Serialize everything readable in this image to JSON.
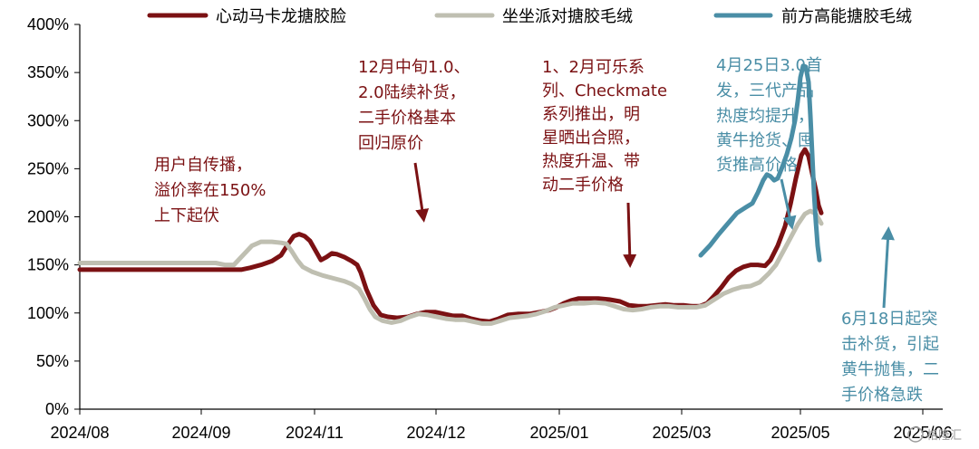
{
  "chart_data": {
    "type": "line",
    "x_labels": [
      "2024/08",
      "2024/09",
      "2024/11",
      "2024/12",
      "2025/01",
      "2025/03",
      "2025/05",
      "2025/06"
    ],
    "y_ticks": [
      "0%",
      "50%",
      "100%",
      "150%",
      "200%",
      "250%",
      "300%",
      "350%",
      "400%"
    ],
    "ylim": [
      0,
      400
    ],
    "y_unit": "%",
    "grid": false,
    "legend_position": "top",
    "series": [
      {
        "name": "心动马卡龙搪胶脸",
        "color": "#7b1113",
        "points": [
          [
            0,
            145
          ],
          [
            20,
            145
          ],
          [
            50,
            145
          ],
          [
            80,
            145
          ],
          [
            110,
            145
          ],
          [
            140,
            145
          ],
          [
            160,
            145
          ],
          [
            178,
            145
          ],
          [
            188,
            147
          ],
          [
            200,
            150
          ],
          [
            212,
            154
          ],
          [
            222,
            160
          ],
          [
            230,
            172
          ],
          [
            236,
            180
          ],
          [
            242,
            182
          ],
          [
            248,
            180
          ],
          [
            254,
            175
          ],
          [
            260,
            165
          ],
          [
            266,
            155
          ],
          [
            272,
            158
          ],
          [
            278,
            162
          ],
          [
            284,
            161
          ],
          [
            292,
            158
          ],
          [
            300,
            154
          ],
          [
            306,
            150
          ],
          [
            310,
            142
          ],
          [
            316,
            125
          ],
          [
            324,
            108
          ],
          [
            332,
            98
          ],
          [
            340,
            96
          ],
          [
            350,
            95
          ],
          [
            362,
            96
          ],
          [
            372,
            99
          ],
          [
            382,
            101
          ],
          [
            392,
            101
          ],
          [
            402,
            99
          ],
          [
            412,
            97
          ],
          [
            422,
            97
          ],
          [
            432,
            94
          ],
          [
            442,
            92
          ],
          [
            452,
            91
          ],
          [
            462,
            94
          ],
          [
            472,
            98
          ],
          [
            484,
            99
          ],
          [
            496,
            99
          ],
          [
            508,
            101
          ],
          [
            518,
            103
          ],
          [
            526,
            106
          ],
          [
            534,
            110
          ],
          [
            542,
            113
          ],
          [
            550,
            115
          ],
          [
            560,
            115
          ],
          [
            572,
            115
          ],
          [
            584,
            114
          ],
          [
            596,
            112
          ],
          [
            606,
            108
          ],
          [
            616,
            107
          ],
          [
            626,
            107
          ],
          [
            636,
            108
          ],
          [
            646,
            109
          ],
          [
            656,
            108
          ],
          [
            666,
            108
          ],
          [
            676,
            107
          ],
          [
            684,
            107
          ],
          [
            692,
            110
          ],
          [
            700,
            118
          ],
          [
            708,
            127
          ],
          [
            716,
            137
          ],
          [
            724,
            144
          ],
          [
            732,
            148
          ],
          [
            740,
            150
          ],
          [
            748,
            150
          ],
          [
            756,
            149
          ],
          [
            762,
            155
          ],
          [
            770,
            170
          ],
          [
            778,
            190
          ],
          [
            784,
            213
          ],
          [
            790,
            240
          ],
          [
            796,
            264
          ],
          [
            800,
            270
          ],
          [
            804,
            263
          ],
          [
            808,
            245
          ],
          [
            812,
            228
          ],
          [
            815,
            212
          ],
          [
            818,
            204
          ]
        ]
      },
      {
        "name": "坐坐派对搪胶毛绒",
        "color": "#bfbfb1",
        "points": [
          [
            0,
            152
          ],
          [
            30,
            152
          ],
          [
            60,
            152
          ],
          [
            90,
            152
          ],
          [
            120,
            152
          ],
          [
            140,
            152
          ],
          [
            150,
            152
          ],
          [
            160,
            150
          ],
          [
            170,
            150
          ],
          [
            180,
            160
          ],
          [
            190,
            170
          ],
          [
            200,
            174
          ],
          [
            212,
            174
          ],
          [
            222,
            173
          ],
          [
            228,
            172
          ],
          [
            234,
            164
          ],
          [
            240,
            155
          ],
          [
            246,
            148
          ],
          [
            256,
            143
          ],
          [
            268,
            139
          ],
          [
            280,
            136
          ],
          [
            292,
            133
          ],
          [
            300,
            130
          ],
          [
            308,
            125
          ],
          [
            314,
            115
          ],
          [
            320,
            104
          ],
          [
            326,
            96
          ],
          [
            334,
            92
          ],
          [
            344,
            90
          ],
          [
            354,
            92
          ],
          [
            364,
            96
          ],
          [
            374,
            99
          ],
          [
            384,
            98
          ],
          [
            394,
            96
          ],
          [
            404,
            94
          ],
          [
            414,
            93
          ],
          [
            424,
            93
          ],
          [
            434,
            91
          ],
          [
            444,
            89
          ],
          [
            454,
            89
          ],
          [
            464,
            92
          ],
          [
            474,
            95
          ],
          [
            484,
            96
          ],
          [
            494,
            97
          ],
          [
            504,
            99
          ],
          [
            514,
            102
          ],
          [
            524,
            106
          ],
          [
            534,
            108
          ],
          [
            544,
            110
          ],
          [
            556,
            110
          ],
          [
            568,
            111
          ],
          [
            580,
            110
          ],
          [
            590,
            107
          ],
          [
            600,
            104
          ],
          [
            610,
            103
          ],
          [
            620,
            104
          ],
          [
            630,
            106
          ],
          [
            640,
            107
          ],
          [
            650,
            107
          ],
          [
            660,
            106
          ],
          [
            670,
            106
          ],
          [
            680,
            106
          ],
          [
            690,
            108
          ],
          [
            700,
            114
          ],
          [
            710,
            120
          ],
          [
            720,
            124
          ],
          [
            730,
            127
          ],
          [
            740,
            128
          ],
          [
            750,
            132
          ],
          [
            760,
            141
          ],
          [
            768,
            150
          ],
          [
            776,
            164
          ],
          [
            784,
            178
          ],
          [
            792,
            192
          ],
          [
            800,
            203
          ],
          [
            806,
            206
          ],
          [
            812,
            203
          ],
          [
            818,
            193
          ]
        ]
      },
      {
        "name": "前方高能搪胶毛绒",
        "color": "#4a8ea6",
        "points": [
          [
            685,
            160
          ],
          [
            695,
            170
          ],
          [
            705,
            182
          ],
          [
            715,
            193
          ],
          [
            725,
            204
          ],
          [
            735,
            210
          ],
          [
            742,
            214
          ],
          [
            748,
            225
          ],
          [
            754,
            238
          ],
          [
            758,
            244
          ],
          [
            762,
            242
          ],
          [
            766,
            238
          ],
          [
            770,
            240
          ],
          [
            775,
            252
          ],
          [
            780,
            265
          ],
          [
            785,
            282
          ],
          [
            789,
            300
          ],
          [
            792,
            320
          ],
          [
            795,
            345
          ],
          [
            798,
            357
          ],
          [
            801,
            356
          ],
          [
            804,
            340
          ],
          [
            806,
            305
          ],
          [
            808,
            265
          ],
          [
            810,
            225
          ],
          [
            812,
            195
          ],
          [
            814,
            170
          ],
          [
            816,
            155
          ]
        ]
      }
    ]
  },
  "annotations": [
    {
      "id": "user-spread",
      "color": "#7b1113",
      "lines": [
        "用户自传播，",
        "溢价率在150%",
        "上下起伏"
      ]
    },
    {
      "id": "december-restock",
      "color": "#7b1113",
      "lines": [
        "12月中旬1.0、",
        "2.0陆续补货，",
        "二手价格基本",
        "回归原价"
      ]
    },
    {
      "id": "jan-feb-release",
      "color": "#7b1113",
      "lines": [
        "1、2月可乐系",
        "列、Checkmate",
        "系列推出，明",
        "星晒出合照，",
        "热度升温、带",
        "动二手价格"
      ]
    },
    {
      "id": "april-launch",
      "color": "#4a8ea6",
      "lines": [
        "4月25日3.0首",
        "发，三代产品",
        "热度均提升，",
        "黄牛抢货、囤",
        "货推高价格"
      ]
    },
    {
      "id": "june-restock",
      "color": "#4a8ea6",
      "lines": [
        "6月18日起突",
        "击补货，引起",
        "黄牛抛售，二",
        "手价格急跌"
      ]
    }
  ],
  "watermark": "格隆汇"
}
